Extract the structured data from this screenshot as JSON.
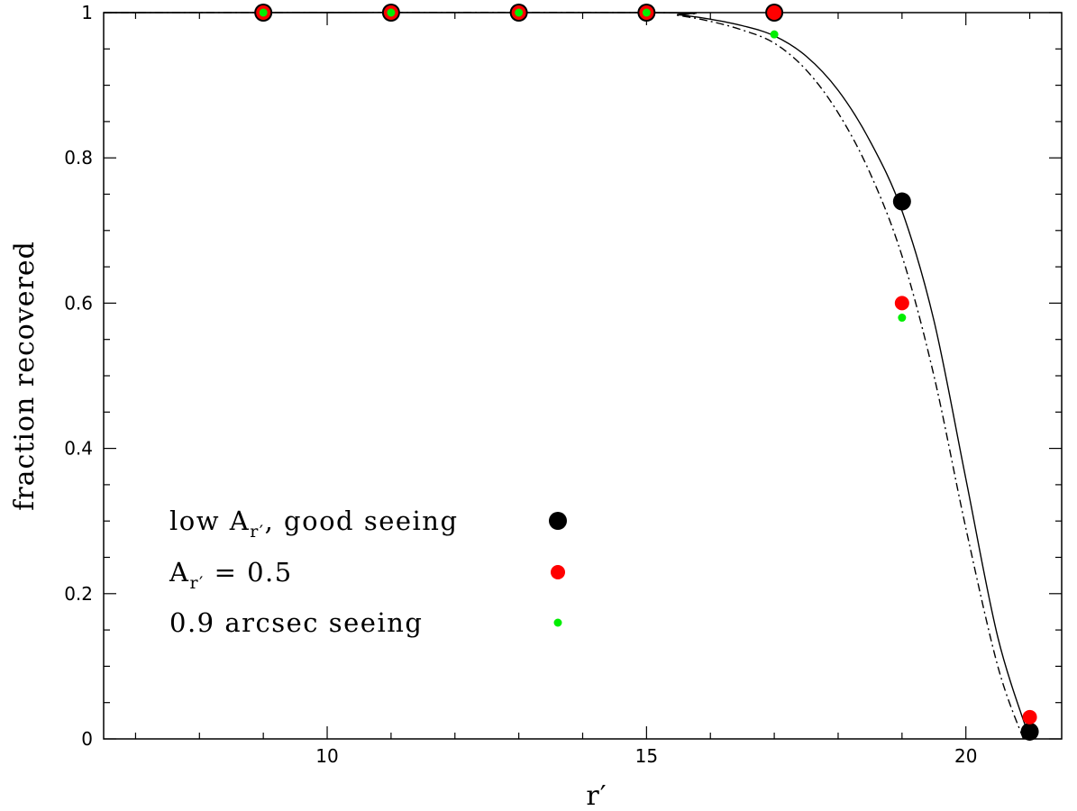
{
  "chart_data": {
    "type": "scatter",
    "xlabel": "r′",
    "ylabel": "fraction recovered",
    "xlim": [
      6.5,
      21.5
    ],
    "ylim": [
      0,
      1
    ],
    "x_ticks": [
      10,
      15,
      20
    ],
    "x_tick_labels": [
      "10",
      "15",
      "20"
    ],
    "y_ticks": [
      0,
      0.2,
      0.4,
      0.6,
      0.8,
      1
    ],
    "y_tick_labels": [
      "0",
      "0.2",
      "0.4",
      "0.6",
      "0.8",
      "1"
    ],
    "legend_placement": "lower-left",
    "series": [
      {
        "name": "low A_r′, good seeing",
        "color": "#000000",
        "marker": "large-circle",
        "x": [
          9,
          11,
          13,
          15,
          17,
          19,
          21
        ],
        "y": [
          1.0,
          1.0,
          1.0,
          1.0,
          1.0,
          0.74,
          0.01
        ]
      },
      {
        "name": "A_r′ = 0.5",
        "color": "#ff0000",
        "marker": "medium-circle",
        "x": [
          9,
          11,
          13,
          15,
          17,
          19,
          21
        ],
        "y": [
          1.0,
          1.0,
          1.0,
          1.0,
          1.0,
          0.6,
          0.03
        ]
      },
      {
        "name": "0.9 arcsec seeing",
        "color": "#00ee00",
        "marker": "small-circle",
        "x": [
          9,
          11,
          13,
          15,
          17,
          19
        ],
        "y": [
          1.0,
          1.0,
          1.0,
          1.0,
          0.97,
          0.58
        ]
      }
    ],
    "curves": [
      {
        "style": "solid",
        "color": "#000000",
        "x": [
          6.5,
          15,
          15.5,
          16,
          16.5,
          17,
          17.5,
          18,
          18.5,
          19,
          19.5,
          20,
          20.5,
          21
        ],
        "y": [
          1.0,
          1.0,
          0.997,
          0.991,
          0.982,
          0.968,
          0.94,
          0.893,
          0.823,
          0.727,
          0.576,
          0.358,
          0.14,
          0.0
        ]
      },
      {
        "style": "dash-dot",
        "color": "#000000",
        "x": [
          6.5,
          15,
          15.5,
          16,
          16.5,
          17,
          17.5,
          18,
          18.5,
          19,
          19.5,
          20,
          20.5,
          20.9
        ],
        "y": [
          1.0,
          1.0,
          0.996,
          0.988,
          0.976,
          0.958,
          0.921,
          0.862,
          0.779,
          0.665,
          0.5,
          0.29,
          0.1,
          0.0
        ]
      }
    ],
    "legend": [
      {
        "label_main": "low A",
        "label_sub": "r′",
        "label_rest": ", good seeing",
        "color": "#000000",
        "marker": "large-circle"
      },
      {
        "label_main": "A",
        "label_sub": "r′",
        "label_rest": " = 0.5",
        "color": "#ff0000",
        "marker": "medium-circle"
      },
      {
        "label_main": "0.9 arcsec seeing",
        "label_sub": "",
        "label_rest": "",
        "color": "#00ee00",
        "marker": "small-circle"
      }
    ]
  }
}
